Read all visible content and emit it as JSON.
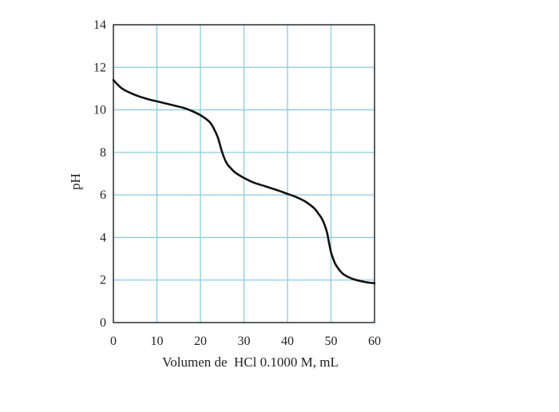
{
  "chart_data": {
    "type": "line",
    "xlabel": "Volumen de  HCl 0.1000 M, mL",
    "ylabel": "pH",
    "xlim": [
      0,
      60
    ],
    "ylim": [
      0,
      14
    ],
    "x_ticks": [
      "0",
      "10",
      "20",
      "30",
      "40",
      "50",
      "60"
    ],
    "y_ticks": [
      "0",
      "2",
      "4",
      "6",
      "8",
      "10",
      "12",
      "14"
    ],
    "grid": true,
    "grid_color": "#8ecae0",
    "line_color": "#111111",
    "series": [
      {
        "x": [
          0,
          2,
          5,
          8,
          10,
          13,
          16,
          18,
          20,
          22,
          23,
          24,
          25,
          26,
          27,
          28,
          30,
          32,
          35,
          38,
          40,
          42,
          44,
          46,
          47,
          48,
          49,
          49.5,
          50,
          50.5,
          51,
          52,
          53,
          55,
          58,
          60
        ],
        "y": [
          11.4,
          11.0,
          10.7,
          10.5,
          10.4,
          10.25,
          10.1,
          9.95,
          9.75,
          9.45,
          9.15,
          8.7,
          8.0,
          7.5,
          7.25,
          7.05,
          6.8,
          6.6,
          6.4,
          6.2,
          6.05,
          5.9,
          5.7,
          5.4,
          5.15,
          4.85,
          4.3,
          3.8,
          3.3,
          3.0,
          2.75,
          2.45,
          2.25,
          2.05,
          1.9,
          1.85
        ]
      }
    ]
  }
}
